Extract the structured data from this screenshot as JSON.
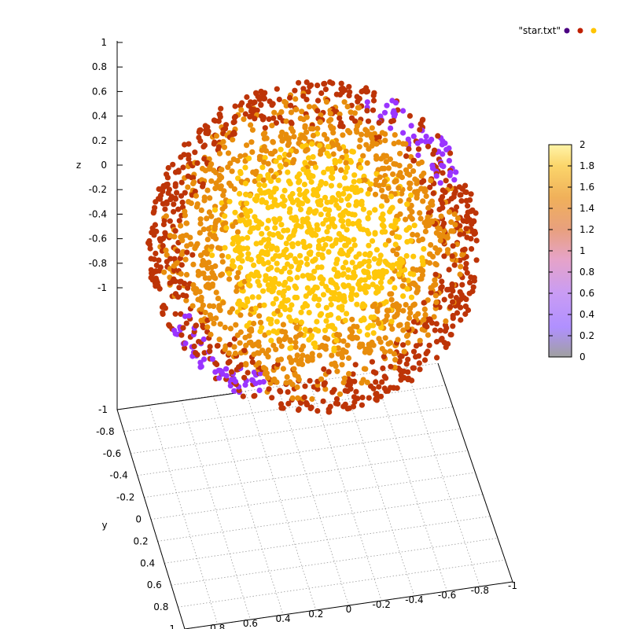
{
  "chart_data": {
    "type": "scatter",
    "dimensions": 3,
    "title": "",
    "legend": {
      "entries": [
        "\"star.txt\""
      ],
      "placement": "top-right"
    },
    "axes": {
      "x": {
        "label": "",
        "range": [
          -1,
          1
        ],
        "ticks": [
          "-1",
          "-0.8",
          "-0.6",
          "-0.4",
          "-0.2",
          "0",
          "0.2",
          "0.4",
          "0.6",
          "0.8",
          "1"
        ]
      },
      "y": {
        "label": "y",
        "range": [
          -1,
          1
        ],
        "ticks": [
          "-1",
          "-0.8",
          "-0.6",
          "-0.4",
          "-0.2",
          "0",
          "0.2",
          "0.4",
          "0.6",
          "0.8",
          "1"
        ]
      },
      "z": {
        "label": "z",
        "range": [
          -1,
          1
        ],
        "ticks": [
          "1",
          "0.8",
          "0.6",
          "0.4",
          "0.2",
          "0",
          "-0.2",
          "-0.4",
          "-0.6",
          "-0.8",
          "-1"
        ]
      }
    },
    "grid": true,
    "colorbar": {
      "range": [
        0,
        2
      ],
      "ticks": [
        "2",
        "1.8",
        "1.6",
        "1.4",
        "1.2",
        "1",
        "0.8",
        "0.6",
        "0.4",
        "0.2",
        "0"
      ],
      "placement": "right"
    },
    "series": [
      {
        "name": "\"star.txt\"",
        "shape": "sphere",
        "center": [
          0,
          0,
          0
        ],
        "radius": 1,
        "point_count": 2500,
        "color_value_range": [
          0,
          2
        ]
      }
    ],
    "colors": {
      "legend_dots": [
        "#4b0082",
        "#c02000",
        "#ffc400"
      ],
      "palette": [
        "#a0a0a0",
        "#b090ff",
        "#c99cf4",
        "#e6a3c8",
        "#e8a07e",
        "#f0b05a",
        "#fbd56a",
        "#fff4a8"
      ],
      "points": {
        "rim_dark": "#bd3407",
        "mid": "#e88d0c",
        "core": "#ffc70a",
        "violet": "#9a34ff"
      }
    }
  }
}
